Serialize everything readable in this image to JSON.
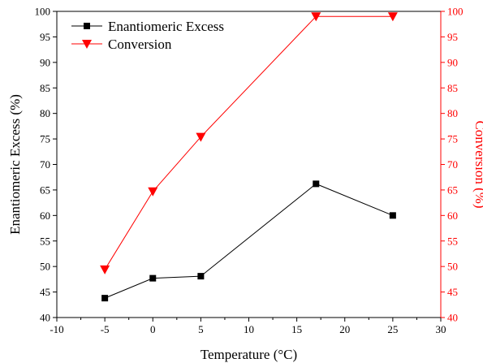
{
  "chart_data": {
    "type": "line",
    "xlabel": "Temperature (°C)",
    "ylabel_left": "Enantiomeric Excess (%)",
    "ylabel_right": "Conversion (%)",
    "xlim": [
      -10,
      30
    ],
    "ylim_left": [
      40,
      100
    ],
    "ylim_right": [
      40,
      100
    ],
    "x_ticks": [
      -10,
      -5,
      0,
      5,
      10,
      15,
      20,
      25,
      30
    ],
    "y_ticks_left": [
      40,
      45,
      50,
      55,
      60,
      65,
      70,
      75,
      80,
      85,
      90,
      95,
      100
    ],
    "y_ticks_right": [
      40,
      45,
      50,
      55,
      60,
      65,
      70,
      75,
      80,
      85,
      90,
      95,
      100
    ],
    "grid": false,
    "legend_position": "top-left",
    "series": [
      {
        "name": "Enantiomeric Excess",
        "axis": "left",
        "marker": "square",
        "color": "#000000",
        "x": [
          -5,
          0,
          5,
          17,
          25
        ],
        "y": [
          43.8,
          47.7,
          48.1,
          66.2,
          60.0
        ]
      },
      {
        "name": "Conversion",
        "axis": "right",
        "marker": "triangle-down",
        "color": "#ff0000",
        "x": [
          -5,
          0,
          5,
          17,
          25
        ],
        "y": [
          49.4,
          64.7,
          75.4,
          99.0,
          99.0
        ]
      }
    ]
  }
}
